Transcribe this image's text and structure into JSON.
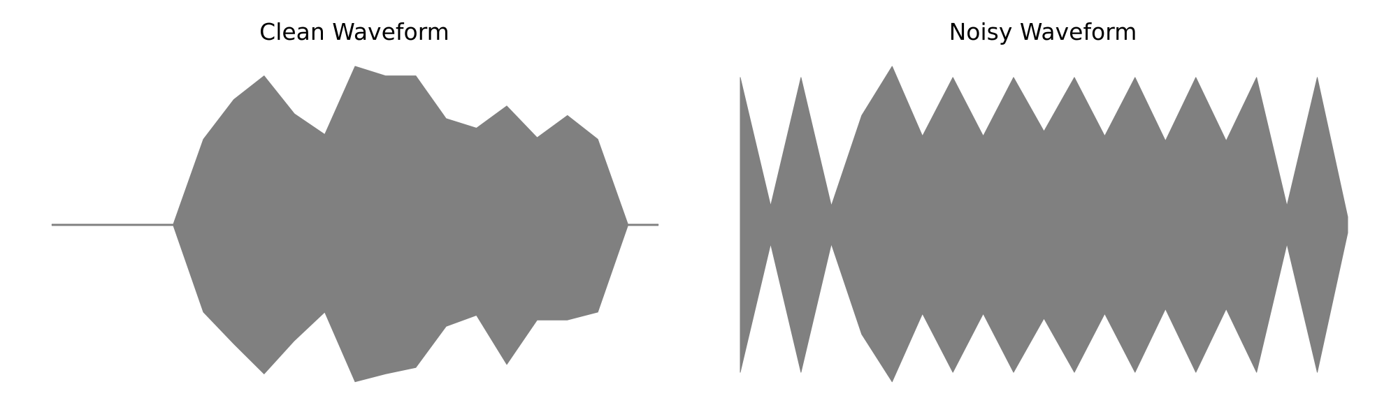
{
  "chart_data": [
    {
      "type": "line",
      "title": "Clean Waveform",
      "color": "#808080",
      "axes_visible": false,
      "grid": false,
      "x": [
        0,
        0.1,
        0.2,
        0.3,
        0.4,
        0.5,
        0.6,
        0.7,
        0.8,
        0.9,
        1.0,
        1.1,
        1.2,
        1.3,
        1.4,
        1.5,
        1.6,
        1.7,
        1.8,
        1.9,
        2.0
      ],
      "envelope_upper": [
        0,
        0,
        0,
        0,
        0,
        0.54,
        0.79,
        0.94,
        0.7,
        0.57,
        1.0,
        0.94,
        0.94,
        0.67,
        0.61,
        0.75,
        0.55,
        0.69,
        0.54,
        0,
        0
      ],
      "envelope_lower": [
        0,
        0,
        0,
        0,
        0,
        -0.55,
        -0.75,
        -0.94,
        -0.73,
        -0.55,
        -0.99,
        -0.94,
        -0.9,
        -0.64,
        -0.57,
        -0.88,
        -0.6,
        -0.6,
        -0.55,
        0,
        0
      ],
      "ylim": [
        -1.0,
        1.0
      ]
    },
    {
      "type": "line",
      "title": "Noisy Waveform",
      "color": "#808080",
      "axes_visible": false,
      "grid": false,
      "x": [
        0,
        0.1,
        0.2,
        0.3,
        0.4,
        0.5,
        0.6,
        0.7,
        0.8,
        0.9,
        1.0,
        1.1,
        1.2,
        1.3,
        1.4,
        1.5,
        1.6,
        1.7,
        1.8,
        1.9,
        2.0
      ],
      "envelope_upper": [
        0.93,
        0.12,
        0.93,
        0.12,
        0.69,
        1.0,
        0.56,
        0.93,
        0.56,
        0.93,
        0.59,
        0.93,
        0.56,
        0.93,
        0.53,
        0.93,
        0.53,
        0.93,
        0.12,
        0.93,
        0.05
      ],
      "envelope_lower": [
        -0.93,
        -0.12,
        -0.93,
        -0.12,
        -0.69,
        -0.99,
        -0.56,
        -0.93,
        -0.56,
        -0.93,
        -0.59,
        -0.93,
        -0.56,
        -0.93,
        -0.53,
        -0.93,
        -0.53,
        -0.93,
        -0.12,
        -0.93,
        -0.05
      ],
      "ylim": [
        -1.0,
        1.0
      ]
    }
  ]
}
